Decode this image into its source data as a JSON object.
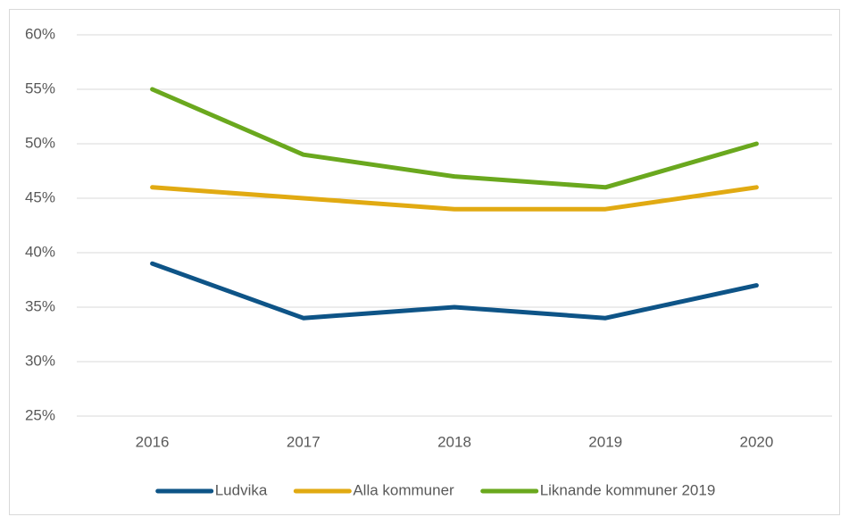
{
  "chart_data": {
    "type": "line",
    "categories": [
      "2016",
      "2017",
      "2018",
      "2019",
      "2020"
    ],
    "series": [
      {
        "name": "Ludvika",
        "color": "#0e5487",
        "values": [
          39,
          34,
          35,
          34,
          37
        ]
      },
      {
        "name": "Alla kommuner",
        "color": "#e1aa12",
        "values": [
          46,
          45,
          44,
          44,
          46
        ]
      },
      {
        "name": "Liknande kommuner 2019",
        "color": "#6aa81e",
        "values": [
          55,
          49,
          47,
          46,
          50
        ]
      }
    ],
    "ylim": [
      25,
      60
    ],
    "yticks": [
      {
        "value": 25,
        "label": "25%"
      },
      {
        "value": 30,
        "label": "30%"
      },
      {
        "value": 35,
        "label": "35%"
      },
      {
        "value": 40,
        "label": "40%"
      },
      {
        "value": 45,
        "label": "45%"
      },
      {
        "value": 50,
        "label": "50%"
      },
      {
        "value": 55,
        "label": "55%"
      },
      {
        "value": 60,
        "label": "60%"
      }
    ],
    "grid": true,
    "legend": "bottom"
  }
}
